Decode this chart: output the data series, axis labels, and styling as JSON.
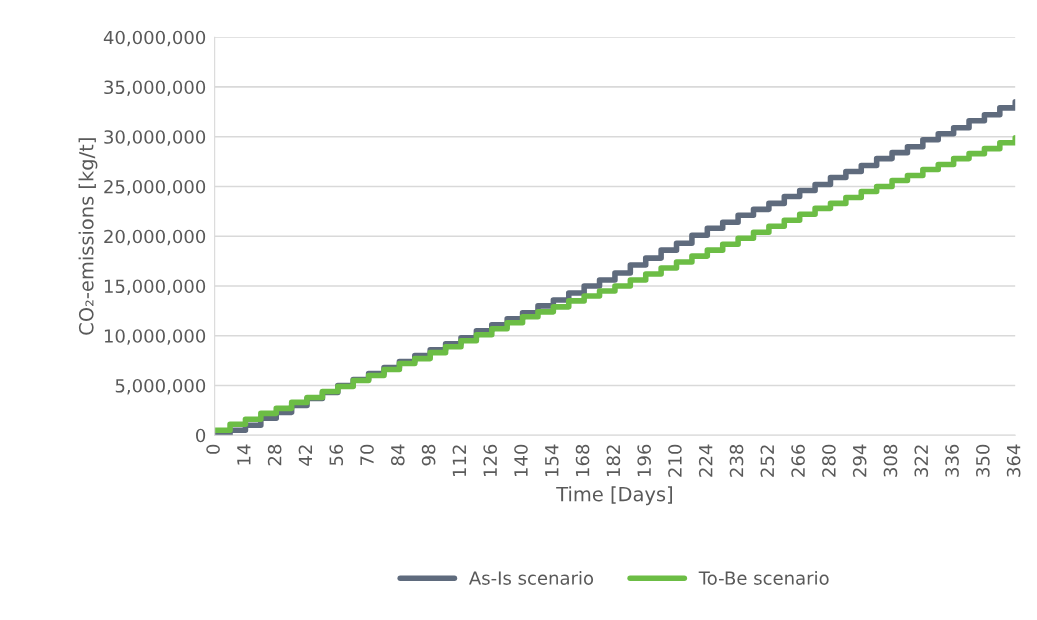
{
  "chart_data": {
    "type": "step",
    "xlabel": "Time [Days]",
    "ylabel": "CO₂-emissions [kg/t]",
    "x": [
      0,
      7,
      14,
      21,
      28,
      35,
      42,
      49,
      56,
      63,
      70,
      77,
      84,
      91,
      98,
      105,
      112,
      119,
      126,
      133,
      140,
      147,
      154,
      161,
      168,
      175,
      182,
      189,
      196,
      203,
      210,
      217,
      224,
      231,
      238,
      245,
      252,
      259,
      266,
      273,
      280,
      287,
      294,
      301,
      308,
      315,
      322,
      329,
      336,
      343,
      350,
      357,
      364
    ],
    "series": [
      {
        "name": "As-Is scenario",
        "color": "#5f6b7d",
        "values": [
          0,
          500000,
          1000000,
          1700000,
          2300000,
          3000000,
          3700000,
          4300000,
          5000000,
          5600000,
          6200000,
          6800000,
          7400000,
          8000000,
          8600000,
          9200000,
          9800000,
          10500000,
          11100000,
          11700000,
          12300000,
          13000000,
          13600000,
          14300000,
          15000000,
          15600000,
          16300000,
          17100000,
          17800000,
          18600000,
          19300000,
          20100000,
          20800000,
          21400000,
          22100000,
          22700000,
          23300000,
          24000000,
          24600000,
          25200000,
          25900000,
          26500000,
          27100000,
          27800000,
          28400000,
          29000000,
          29700000,
          30300000,
          30900000,
          31600000,
          32200000,
          32900000,
          33500000
        ]
      },
      {
        "name": "To-Be scenario",
        "color": "#6cbd45",
        "values": [
          500000,
          1100000,
          1600000,
          2200000,
          2700000,
          3300000,
          3800000,
          4400000,
          4900000,
          5500000,
          6000000,
          6600000,
          7200000,
          7700000,
          8300000,
          8900000,
          9500000,
          10100000,
          10700000,
          11300000,
          11900000,
          12400000,
          12900000,
          13500000,
          14000000,
          14500000,
          15000000,
          15600000,
          16200000,
          16800000,
          17400000,
          18000000,
          18600000,
          19200000,
          19800000,
          20400000,
          21000000,
          21600000,
          22200000,
          22800000,
          23300000,
          23900000,
          24500000,
          25000000,
          25600000,
          26100000,
          26700000,
          27200000,
          27800000,
          28300000,
          28800000,
          29400000,
          29900000
        ]
      }
    ],
    "xlim": [
      0,
      364
    ],
    "xticks": [
      0,
      14,
      28,
      42,
      56,
      70,
      84,
      98,
      112,
      126,
      140,
      154,
      168,
      182,
      196,
      210,
      224,
      238,
      252,
      266,
      280,
      294,
      308,
      322,
      336,
      350,
      364
    ],
    "ylim": [
      0,
      40000000
    ],
    "yticks": [
      0,
      {
        "value": 5000000,
        "label": "5,000,000"
      },
      {
        "value": 10000000,
        "label": "10,000,000"
      },
      {
        "value": 15000000,
        "label": "15,000,000"
      },
      {
        "value": 20000000,
        "label": "20,000,000"
      },
      {
        "value": 25000000,
        "label": "25,000,000"
      },
      {
        "value": 30000000,
        "label": "30,000,000"
      },
      {
        "value": 35000000,
        "label": "35,000,000"
      },
      {
        "value": 40000000,
        "label": "40,000,000"
      }
    ],
    "grid": "y",
    "legend": "bottom",
    "line_style": "solid"
  }
}
